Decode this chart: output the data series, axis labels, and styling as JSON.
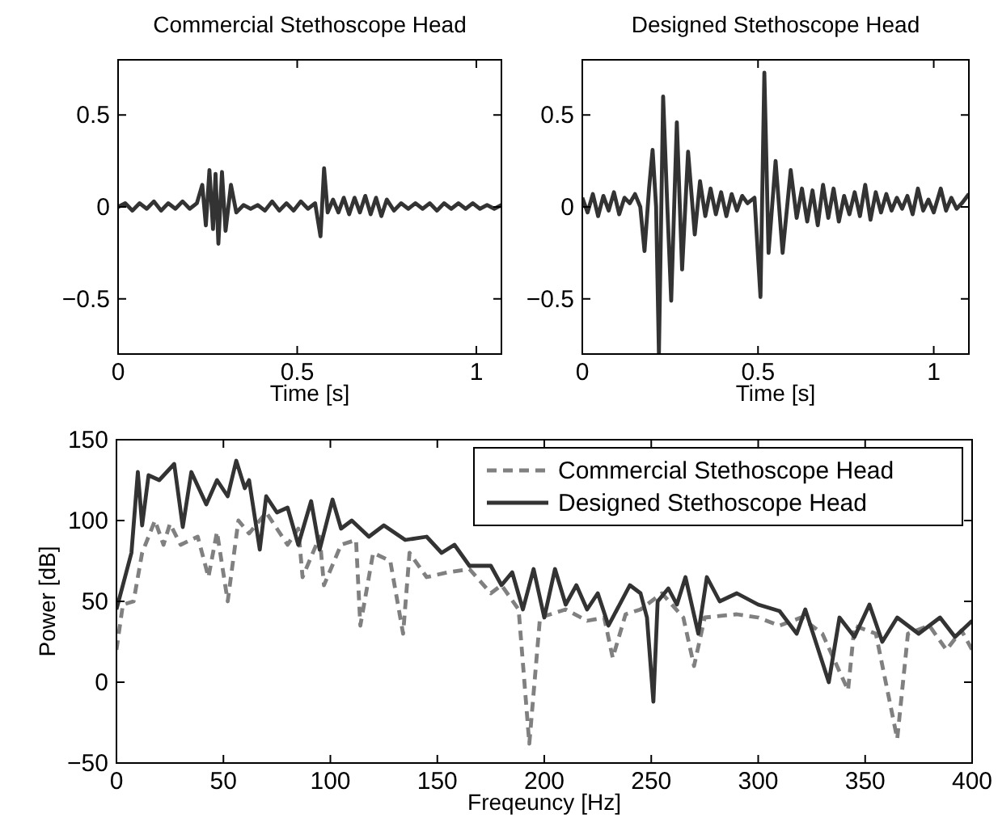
{
  "chart_data": [
    {
      "type": "line",
      "title": "Commercial Stethoscope Head",
      "xlabel": "Time [s]",
      "xlim": [
        0,
        1.07
      ],
      "ylim": [
        -0.8,
        0.8
      ],
      "xticks": [
        0,
        0.5,
        1
      ],
      "yticks": [
        -0.5,
        0,
        0.5
      ],
      "line_style": "solid",
      "series": [
        {
          "color": "#333333",
          "x": [
            0,
            0.02,
            0.04,
            0.06,
            0.08,
            0.1,
            0.12,
            0.14,
            0.16,
            0.18,
            0.2,
            0.22,
            0.235,
            0.245,
            0.255,
            0.265,
            0.272,
            0.28,
            0.29,
            0.3,
            0.315,
            0.33,
            0.35,
            0.37,
            0.39,
            0.41,
            0.43,
            0.45,
            0.47,
            0.49,
            0.51,
            0.53,
            0.55,
            0.565,
            0.575,
            0.585,
            0.6,
            0.615,
            0.63,
            0.645,
            0.66,
            0.675,
            0.69,
            0.705,
            0.72,
            0.735,
            0.75,
            0.77,
            0.79,
            0.81,
            0.83,
            0.85,
            0.87,
            0.89,
            0.91,
            0.93,
            0.95,
            0.97,
            0.99,
            1.01,
            1.03,
            1.05,
            1.07
          ],
          "values": [
            0,
            0.02,
            -0.02,
            0.02,
            -0.01,
            0.03,
            -0.02,
            0.02,
            -0.01,
            0.03,
            -0.01,
            0.02,
            0.12,
            -0.1,
            0.2,
            -0.12,
            0.18,
            -0.2,
            0.19,
            -0.13,
            0.12,
            -0.03,
            0.01,
            -0.01,
            0.01,
            -0.02,
            0.03,
            -0.02,
            0.02,
            -0.02,
            0.03,
            -0.01,
            0.02,
            -0.16,
            0.21,
            -0.03,
            0.04,
            -0.03,
            0.05,
            -0.04,
            0.05,
            -0.03,
            0.06,
            -0.04,
            0.05,
            -0.05,
            0.04,
            -0.02,
            0.02,
            -0.01,
            0.02,
            -0.01,
            0.02,
            -0.02,
            0.02,
            -0.01,
            0.02,
            -0.01,
            0.02,
            -0.01,
            0.01,
            -0.01,
            0.01
          ]
        }
      ]
    },
    {
      "type": "line",
      "title": "Designed Stethoscope Head",
      "xlabel": "Time [s]",
      "xlim": [
        0,
        1.1
      ],
      "ylim": [
        -0.8,
        0.8
      ],
      "xticks": [
        0,
        0.5,
        1
      ],
      "yticks": [
        -0.5,
        0,
        0.5
      ],
      "line_style": "solid",
      "series": [
        {
          "color": "#333333",
          "x": [
            0,
            0.015,
            0.03,
            0.045,
            0.06,
            0.075,
            0.09,
            0.105,
            0.12,
            0.135,
            0.15,
            0.165,
            0.177,
            0.19,
            0.2,
            0.21,
            0.218,
            0.23,
            0.242,
            0.253,
            0.269,
            0.284,
            0.301,
            0.32,
            0.335,
            0.35,
            0.365,
            0.38,
            0.395,
            0.41,
            0.425,
            0.44,
            0.455,
            0.47,
            0.49,
            0.507,
            0.518,
            0.53,
            0.55,
            0.57,
            0.593,
            0.61,
            0.625,
            0.64,
            0.655,
            0.67,
            0.685,
            0.7,
            0.715,
            0.73,
            0.745,
            0.76,
            0.775,
            0.79,
            0.805,
            0.82,
            0.835,
            0.85,
            0.865,
            0.88,
            0.895,
            0.91,
            0.925,
            0.94,
            0.955,
            0.97,
            0.985,
            1.0,
            1.02,
            1.035,
            1.05,
            1.065,
            1.08,
            1.1
          ],
          "values": [
            0.05,
            -0.03,
            0.07,
            -0.05,
            0.06,
            -0.02,
            0.08,
            -0.04,
            0.05,
            0.02,
            0.07,
            0,
            -0.24,
            0.1,
            0.31,
            0,
            -0.8,
            0.6,
            0,
            -0.51,
            0.46,
            -0.34,
            0.3,
            -0.15,
            0.14,
            -0.05,
            0.1,
            -0.04,
            0.08,
            -0.05,
            0.07,
            -0.02,
            0.06,
            0.02,
            0.05,
            -0.49,
            0.73,
            -0.25,
            0.25,
            -0.25,
            0.2,
            -0.06,
            0.1,
            -0.08,
            0.09,
            -0.1,
            0.12,
            -0.06,
            0.1,
            -0.08,
            0.06,
            -0.04,
            0.08,
            -0.05,
            0.12,
            -0.07,
            0.08,
            -0.03,
            0.07,
            -0.02,
            0.05,
            -0.01,
            0.06,
            -0.04,
            0.1,
            -0.02,
            0.04,
            -0.03,
            0.1,
            -0.02,
            0.05,
            -0.01,
            0.02,
            0.07
          ]
        }
      ]
    },
    {
      "type": "line",
      "xlabel": "Freqeuncy [Hz]",
      "ylabel": "Power [dB]",
      "xlim": [
        0,
        400
      ],
      "ylim": [
        -50,
        150
      ],
      "xticks": [
        0,
        50,
        100,
        150,
        200,
        250,
        300,
        350,
        400
      ],
      "yticks": [
        -50,
        0,
        50,
        100,
        150
      ],
      "legend": "top right",
      "series": [
        {
          "name": "Commercial Stethoscope Head",
          "color": "#808080",
          "line_style": "dashed",
          "x": [
            0,
            3,
            8,
            12,
            18,
            22,
            25,
            30,
            38,
            43,
            47,
            52,
            57,
            62,
            70,
            75,
            80,
            85,
            87,
            95,
            97,
            105,
            112,
            114,
            120,
            128,
            134,
            137,
            145,
            155,
            165,
            175,
            180,
            188,
            193,
            198,
            210,
            220,
            228,
            232,
            238,
            245,
            255,
            265,
            270,
            275,
            290,
            300,
            310,
            320,
            330,
            342,
            345,
            355,
            365,
            370,
            380,
            388,
            395,
            400
          ],
          "values": [
            20,
            48,
            50,
            80,
            100,
            85,
            98,
            85,
            90,
            65,
            93,
            50,
            100,
            92,
            105,
            95,
            85,
            95,
            65,
            90,
            60,
            85,
            88,
            35,
            80,
            75,
            30,
            80,
            65,
            68,
            70,
            55,
            60,
            45,
            -38,
            40,
            45,
            38,
            40,
            15,
            42,
            45,
            55,
            40,
            10,
            40,
            42,
            40,
            35,
            40,
            30,
            -5,
            35,
            30,
            -35,
            30,
            35,
            20,
            32,
            20
          ]
        },
        {
          "name": "Designed Stethoscope Head",
          "color": "#333333",
          "line_style": "solid",
          "x": [
            0,
            7,
            10,
            12,
            15,
            20,
            27,
            31,
            35,
            42,
            47,
            52,
            56,
            60,
            62,
            67,
            70,
            75,
            80,
            85,
            91,
            95,
            101,
            105,
            110,
            118,
            125,
            135,
            145,
            152,
            158,
            165,
            175,
            180,
            185,
            190,
            195,
            200,
            205,
            210,
            215,
            220,
            225,
            230,
            240,
            245,
            248,
            251,
            253,
            258,
            262,
            266,
            272,
            276,
            282,
            290,
            300,
            310,
            318,
            322,
            333,
            338,
            345,
            352,
            358,
            365,
            375,
            385,
            392,
            400
          ],
          "values": [
            45,
            80,
            130,
            97,
            128,
            125,
            135,
            96,
            130,
            110,
            125,
            115,
            137,
            120,
            125,
            82,
            115,
            105,
            108,
            85,
            112,
            82,
            113,
            95,
            100,
            90,
            97,
            88,
            90,
            80,
            85,
            72,
            72,
            60,
            68,
            45,
            70,
            40,
            70,
            48,
            60,
            45,
            55,
            35,
            60,
            55,
            40,
            -12,
            50,
            58,
            48,
            65,
            30,
            65,
            50,
            55,
            48,
            44,
            30,
            45,
            0,
            40,
            28,
            48,
            25,
            40,
            30,
            40,
            28,
            38
          ]
        }
      ]
    }
  ]
}
